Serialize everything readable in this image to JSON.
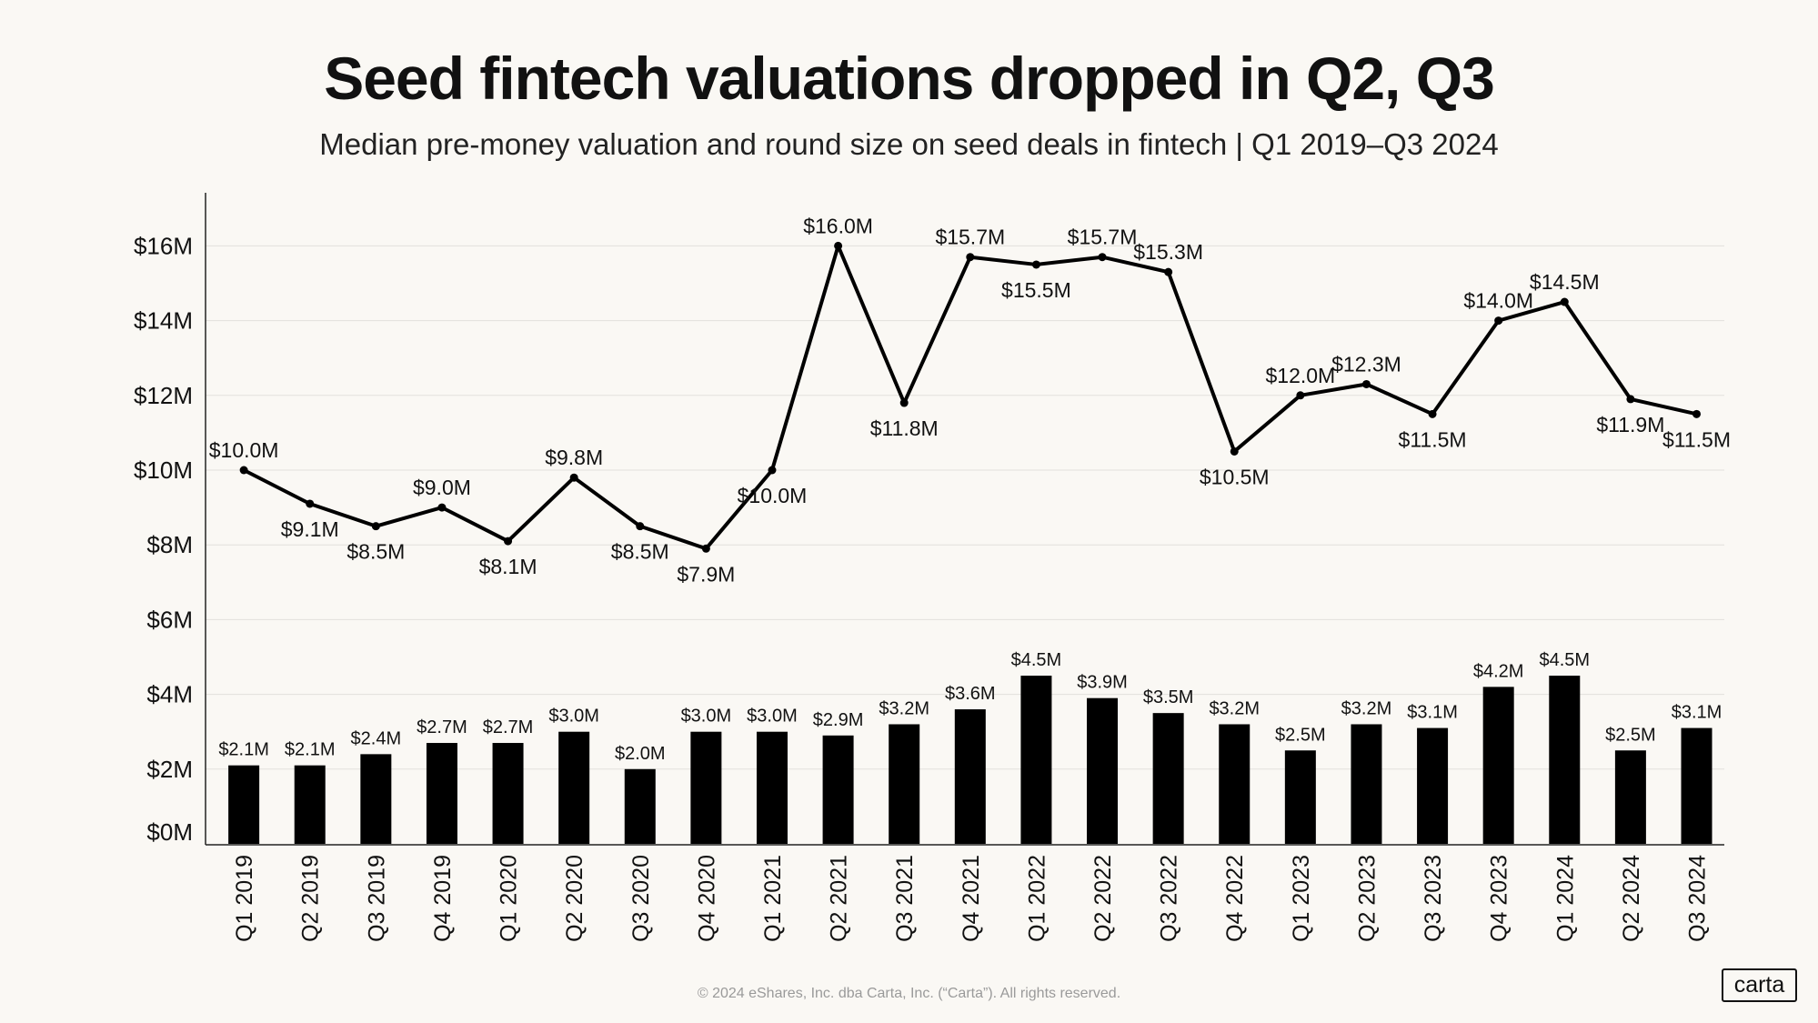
{
  "header": {
    "title": "Seed fintech valuations dropped in Q2, Q3",
    "subtitle": "Median pre-money valuation and round size on seed deals in fintech | Q1 2019–Q3 2024"
  },
  "footer": {
    "copyright": "© 2024 eShares, Inc. dba Carta, Inc. (“Carta”). All rights reserved."
  },
  "brand": {
    "logo_text": "carta"
  },
  "colors": {
    "background": "#faf8f4",
    "series": "#000000",
    "grid": "#e2e0dc",
    "text": "#111111"
  },
  "chart_data": {
    "type": "bar+line",
    "title": "Seed fintech valuations dropped in Q2, Q3",
    "subtitle": "Median pre-money valuation and round size on seed deals in fintech | Q1 2019–Q3 2024",
    "xlabel": "",
    "ylabel": "",
    "ylim": [
      0,
      17.5
    ],
    "yticks": [
      0,
      2,
      4,
      6,
      8,
      10,
      12,
      14,
      16
    ],
    "ytick_labels": [
      "$0M",
      "$2M",
      "$4M",
      "$6M",
      "$8M",
      "$10M",
      "$12M",
      "$14M",
      "$16M"
    ],
    "grid": true,
    "categories": [
      "Q1 2019",
      "Q2 2019",
      "Q3 2019",
      "Q4 2019",
      "Q1 2020",
      "Q2 2020",
      "Q3 2020",
      "Q4 2020",
      "Q1 2021",
      "Q2 2021",
      "Q3 2021",
      "Q4 2021",
      "Q1 2022",
      "Q2 2022",
      "Q3 2022",
      "Q4 2022",
      "Q1 2023",
      "Q2 2023",
      "Q3 2023",
      "Q4 2023",
      "Q1 2024",
      "Q2 2024",
      "Q3 2024"
    ],
    "series": [
      {
        "name": "Median pre-money valuation",
        "type": "line",
        "values": [
          10.0,
          9.1,
          8.5,
          9.0,
          8.1,
          9.8,
          8.5,
          7.9,
          10.0,
          16.0,
          11.8,
          15.7,
          15.5,
          15.7,
          15.3,
          10.5,
          12.0,
          12.3,
          11.5,
          14.0,
          14.5,
          11.9,
          11.5
        ],
        "labels": [
          "$10.0M",
          "$9.1M",
          "$8.5M",
          "$9.0M",
          "$8.1M",
          "$9.8M",
          "$8.5M",
          "$7.9M",
          "$10.0M",
          "$16.0M",
          "$11.8M",
          "$15.7M",
          "$15.5M",
          "$15.7M",
          "$15.3M",
          "$10.5M",
          "$12.0M",
          "$12.3M",
          "$11.5M",
          "$14.0M",
          "$14.5M",
          "$11.9M",
          "$11.5M"
        ],
        "label_positions": [
          "above",
          "below",
          "below",
          "above",
          "below",
          "above",
          "below",
          "below",
          "below",
          "above",
          "below",
          "above",
          "below",
          "above",
          "above",
          "below",
          "above",
          "above",
          "below",
          "above",
          "above",
          "below",
          "below"
        ]
      },
      {
        "name": "Median round size",
        "type": "bar",
        "values": [
          2.1,
          2.1,
          2.4,
          2.7,
          2.7,
          3.0,
          2.0,
          3.0,
          3.0,
          2.9,
          3.2,
          3.6,
          4.5,
          3.9,
          3.5,
          3.2,
          2.5,
          3.2,
          3.1,
          4.2,
          4.5,
          2.5,
          3.1
        ],
        "labels": [
          "$2.1M",
          "$2.1M",
          "$2.4M",
          "$2.7M",
          "$2.7M",
          "$3.0M",
          "$2.0M",
          "$3.0M",
          "$3.0M",
          "$2.9M",
          "$3.2M",
          "$3.6M",
          "$4.5M",
          "$3.9M",
          "$3.5M",
          "$3.2M",
          "$2.5M",
          "$3.2M",
          "$3.1M",
          "$4.2M",
          "$4.5M",
          "$2.5M",
          "$3.1M"
        ]
      }
    ]
  }
}
